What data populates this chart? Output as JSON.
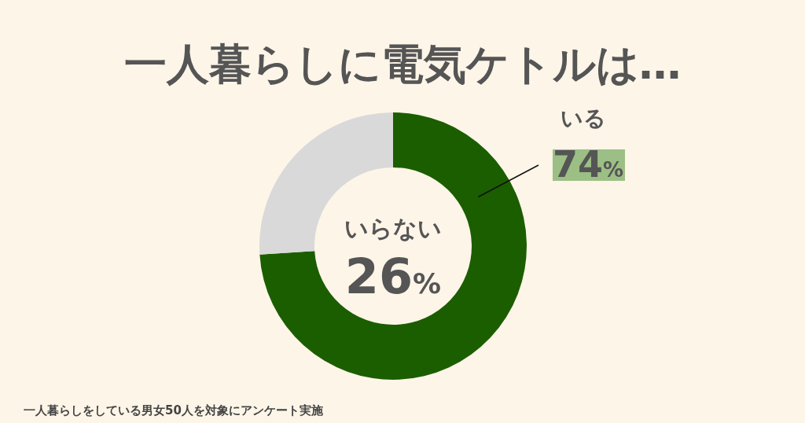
{
  "chart_data": {
    "type": "donut",
    "title": "一人暮らしに電気ケトルは…",
    "categories": [
      "いる",
      "いらない"
    ],
    "values": [
      74,
      26
    ],
    "colors": [
      "#1b5e00",
      "#d9d9d9"
    ],
    "value_labels": [
      "74%",
      "26%"
    ],
    "annotations": [
      "一人暮らしをしている男女50人を対象にアンケート実施"
    ]
  }
}
